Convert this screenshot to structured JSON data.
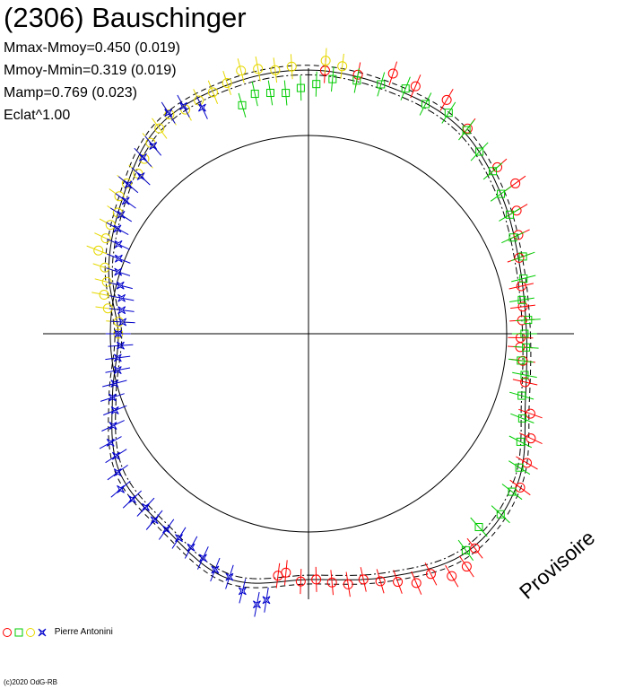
{
  "header": {
    "title": "(2306) Bauschinger",
    "stats": [
      "Mmax-Mmoy=0.450 (0.019)",
      "Mmoy-Mmin=0.319 (0.019)",
      "Mamp=0.769 (0.023)",
      "Eclat^1.00"
    ]
  },
  "watermark": "Provisoire",
  "legend": {
    "observer": "Pierre Antonini"
  },
  "copyright": "(c)2020 OdG-RB",
  "colors": {
    "red": "#ff0000",
    "green": "#00cc00",
    "yellow": "#ffff00",
    "blue": "#0000cc",
    "axes": "#000000"
  },
  "chart_data": {
    "type": "scatter",
    "coordinate_system": "polar",
    "description_of_axes": "Polar lightcurve: angle = rotational phase, radius = brightness",
    "grid": false,
    "legend_position": "bottom-left",
    "reference_circle": true,
    "series": [
      {
        "color": "red",
        "marker": "circle",
        "points": [
          {
            "phase": 0.27,
            "r": 1.23
          },
          {
            "phase": 0.265,
            "r": 1.21
          },
          {
            "phase": 0.255,
            "r": 1.25
          },
          {
            "phase": 0.245,
            "r": 1.24
          },
          {
            "phase": 0.235,
            "r": 1.26
          },
          {
            "phase": 0.225,
            "r": 1.28
          },
          {
            "phase": 0.215,
            "r": 1.27
          },
          {
            "phase": 0.205,
            "r": 1.3
          },
          {
            "phase": 0.195,
            "r": 1.33
          },
          {
            "phase": 0.185,
            "r": 1.37
          },
          {
            "phase": 0.175,
            "r": 1.36
          },
          {
            "phase": 0.165,
            "r": 1.42
          },
          {
            "phase": 0.155,
            "r": 1.42
          },
          {
            "phase": 0.145,
            "r": 1.37
          },
          {
            "phase": 0.1,
            "r": 1.32
          },
          {
            "phase": 0.085,
            "r": 1.28
          },
          {
            "phase": 0.07,
            "r": 1.24
          },
          {
            "phase": 0.055,
            "r": 1.19
          },
          {
            "phase": 0.035,
            "r": 1.12
          },
          {
            "phase": 0.02,
            "r": 1.09
          },
          {
            "phase": 0.01,
            "r": 1.07
          },
          {
            "phase": 0.003,
            "r": 1.07
          },
          {
            "phase": 0.99,
            "r": 1.08
          },
          {
            "phase": 0.98,
            "r": 1.09
          },
          {
            "phase": 0.965,
            "r": 1.1
          },
          {
            "phase": 0.945,
            "r": 1.13
          },
          {
            "phase": 0.93,
            "r": 1.17
          },
          {
            "phase": 0.915,
            "r": 1.22
          },
          {
            "phase": 0.9,
            "r": 1.29
          },
          {
            "phase": 0.885,
            "r": 1.27
          },
          {
            "phase": 0.855,
            "r": 1.31
          },
          {
            "phase": 0.835,
            "r": 1.37
          },
          {
            "phase": 0.815,
            "r": 1.36
          },
          {
            "phase": 0.8,
            "r": 1.38
          },
          {
            "phase": 0.78,
            "r": 1.33
          },
          {
            "phase": 0.76,
            "r": 1.33
          }
        ]
      },
      {
        "color": "green",
        "marker": "square",
        "points": [
          {
            "phase": 0.0,
            "r": 1.09
          },
          {
            "phase": 0.01,
            "r": 1.1
          },
          {
            "phase": 0.02,
            "r": 1.08
          },
          {
            "phase": 0.03,
            "r": 1.11
          },
          {
            "phase": 0.045,
            "r": 1.12
          },
          {
            "phase": 0.06,
            "r": 1.16
          },
          {
            "phase": 0.075,
            "r": 1.2
          },
          {
            "phase": 0.09,
            "r": 1.26
          },
          {
            "phase": 0.105,
            "r": 1.3
          },
          {
            "phase": 0.12,
            "r": 1.33
          },
          {
            "phase": 0.135,
            "r": 1.3
          },
          {
            "phase": 0.15,
            "r": 1.35
          },
          {
            "phase": 0.99,
            "r": 1.11
          },
          {
            "phase": 0.975,
            "r": 1.09
          },
          {
            "phase": 0.96,
            "r": 1.12
          },
          {
            "phase": 0.945,
            "r": 1.15
          },
          {
            "phase": 0.93,
            "r": 1.14
          },
          {
            "phase": 0.915,
            "r": 1.18
          },
          {
            "phase": 0.9,
            "r": 1.2
          },
          {
            "phase": 0.885,
            "r": 1.24
          },
          {
            "phase": 0.87,
            "r": 1.26
          },
          {
            "phase": 0.855,
            "r": 1.3
          },
          {
            "phase": 0.84,
            "r": 1.32
          },
          {
            "phase": 0.825,
            "r": 1.3
          },
          {
            "phase": 0.81,
            "r": 1.33
          },
          {
            "phase": 0.795,
            "r": 1.31
          },
          {
            "phase": 0.78,
            "r": 1.3
          },
          {
            "phase": 0.765,
            "r": 1.29
          },
          {
            "phase": 0.755,
            "r": 1.26
          },
          {
            "phase": 0.745,
            "r": 1.24
          },
          {
            "phase": 0.735,
            "r": 1.22
          },
          {
            "phase": 0.725,
            "r": 1.23
          },
          {
            "phase": 0.715,
            "r": 1.24
          },
          {
            "phase": 0.705,
            "r": 1.2
          }
        ]
      },
      {
        "color": "yellow",
        "marker": "circle",
        "points": [
          {
            "phase": 0.76,
            "r": 1.38
          },
          {
            "phase": 0.77,
            "r": 1.36
          },
          {
            "phase": 0.74,
            "r": 1.35
          },
          {
            "phase": 0.73,
            "r": 1.34
          },
          {
            "phase": 0.72,
            "r": 1.36
          },
          {
            "phase": 0.71,
            "r": 1.37
          },
          {
            "phase": 0.7,
            "r": 1.33
          },
          {
            "phase": 0.69,
            "r": 1.31
          },
          {
            "phase": 0.68,
            "r": 1.3
          },
          {
            "phase": 0.67,
            "r": 1.29
          },
          {
            "phase": 0.66,
            "r": 1.31
          },
          {
            "phase": 0.65,
            "r": 1.28
          },
          {
            "phase": 0.64,
            "r": 1.25
          },
          {
            "phase": 0.63,
            "r": 1.21
          },
          {
            "phase": 0.62,
            "r": 1.18
          },
          {
            "phase": 0.61,
            "r": 1.19
          },
          {
            "phase": 0.6,
            "r": 1.18
          },
          {
            "phase": 0.59,
            "r": 1.14
          },
          {
            "phase": 0.58,
            "r": 1.14
          },
          {
            "phase": 0.57,
            "r": 1.13
          },
          {
            "phase": 0.56,
            "r": 1.14
          },
          {
            "phase": 0.55,
            "r": 1.08
          },
          {
            "phase": 0.54,
            "r": 1.05
          },
          {
            "phase": 0.53,
            "r": 1.05
          },
          {
            "phase": 0.52,
            "r": 1.02
          },
          {
            "phase": 0.51,
            "r": 0.96
          },
          {
            "phase": 0.5,
            "r": 0.96
          }
        ]
      },
      {
        "color": "blue",
        "marker": "star",
        "points": [
          {
            "phase": 0.64,
            "r": 1.23
          },
          {
            "phase": 0.63,
            "r": 1.22
          },
          {
            "phase": 0.62,
            "r": 1.16
          },
          {
            "phase": 0.61,
            "r": 1.18
          },
          {
            "phase": 0.6,
            "r": 1.14
          },
          {
            "phase": 0.59,
            "r": 1.12
          },
          {
            "phase": 0.58,
            "r": 1.1
          },
          {
            "phase": 0.57,
            "r": 1.06
          },
          {
            "phase": 0.56,
            "r": 1.03
          },
          {
            "phase": 0.55,
            "r": 1.01
          },
          {
            "phase": 0.54,
            "r": 0.98
          },
          {
            "phase": 0.53,
            "r": 0.96
          },
          {
            "phase": 0.52,
            "r": 0.95
          },
          {
            "phase": 0.51,
            "r": 0.94
          },
          {
            "phase": 0.5,
            "r": 0.96
          },
          {
            "phase": 0.49,
            "r": 0.95
          },
          {
            "phase": 0.48,
            "r": 0.97
          },
          {
            "phase": 0.47,
            "r": 0.98
          },
          {
            "phase": 0.46,
            "r": 1.01
          },
          {
            "phase": 0.45,
            "r": 1.04
          },
          {
            "phase": 0.44,
            "r": 1.05
          },
          {
            "phase": 0.43,
            "r": 1.09
          },
          {
            "phase": 0.42,
            "r": 1.14
          },
          {
            "phase": 0.41,
            "r": 1.15
          },
          {
            "phase": 0.4,
            "r": 1.19
          },
          {
            "phase": 0.39,
            "r": 1.23
          },
          {
            "phase": 0.38,
            "r": 1.22
          },
          {
            "phase": 0.37,
            "r": 1.2
          },
          {
            "phase": 0.36,
            "r": 1.22
          },
          {
            "phase": 0.35,
            "r": 1.22
          },
          {
            "phase": 0.34,
            "r": 1.22
          },
          {
            "phase": 0.33,
            "r": 1.23
          },
          {
            "phase": 0.32,
            "r": 1.25
          },
          {
            "phase": 0.31,
            "r": 1.28
          },
          {
            "phase": 0.3,
            "r": 1.29
          },
          {
            "phase": 0.29,
            "r": 1.34
          },
          {
            "phase": 0.28,
            "r": 1.39
          },
          {
            "phase": 0.275,
            "r": 1.36
          },
          {
            "phase": 0.66,
            "r": 1.32
          },
          {
            "phase": 0.67,
            "r": 1.31
          },
          {
            "phase": 0.68,
            "r": 1.26
          }
        ]
      }
    ],
    "fit_curve": {
      "phase": [
        0.0,
        0.05,
        0.1,
        0.15,
        0.2,
        0.25,
        0.3,
        0.35,
        0.4,
        0.45,
        0.5,
        0.55,
        0.6,
        0.65,
        0.7,
        0.75,
        0.8,
        0.85,
        0.9,
        0.95
      ],
      "r": [
        1.1,
        1.15,
        1.3,
        1.36,
        1.29,
        1.24,
        1.3,
        1.22,
        1.18,
        1.04,
        0.96,
        1.06,
        1.16,
        1.29,
        1.32,
        1.33,
        1.31,
        1.29,
        1.2,
        1.12
      ]
    }
  }
}
